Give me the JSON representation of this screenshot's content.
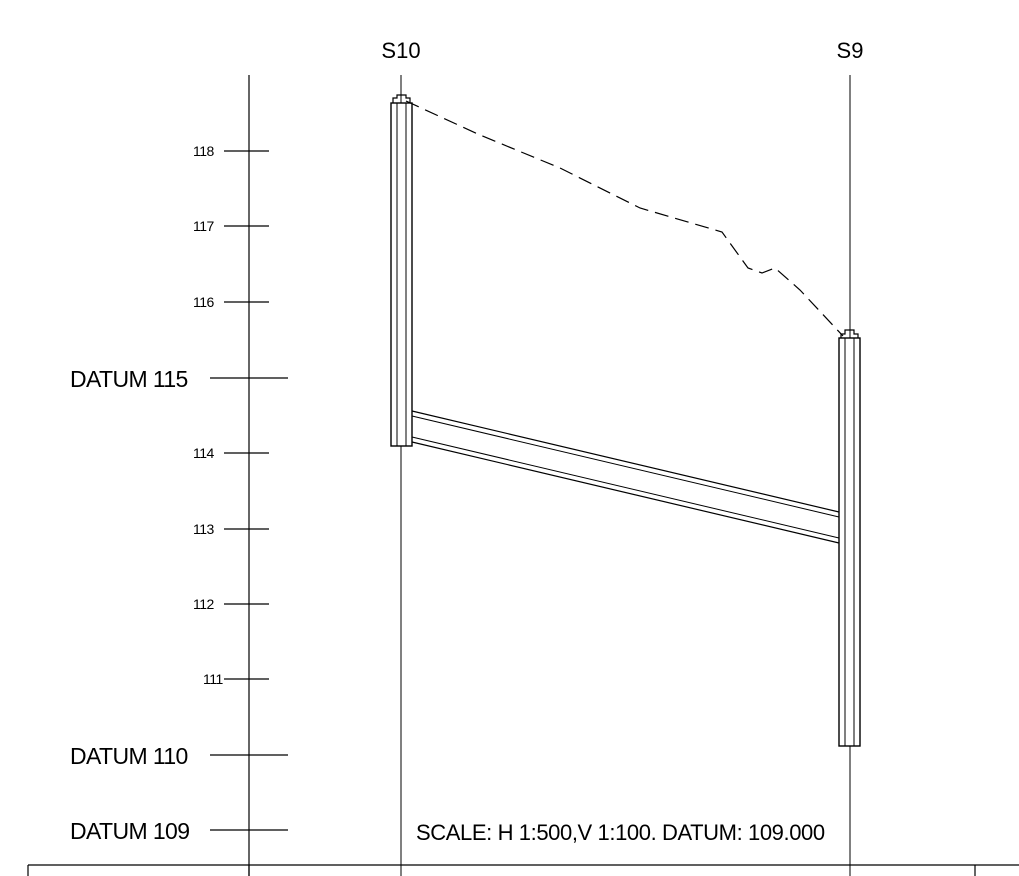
{
  "manholes": {
    "upstream_label": "S10",
    "downstream_label": "S9"
  },
  "levels": {
    "ticks": [
      "118",
      "117",
      "116",
      "114",
      "113",
      "112",
      "111"
    ],
    "datums": [
      "DATUM 115",
      "DATUM 110",
      "DATUM 109"
    ]
  },
  "scale_note": "SCALE: H 1:500,V 1:100. DATUM: 109.000"
}
